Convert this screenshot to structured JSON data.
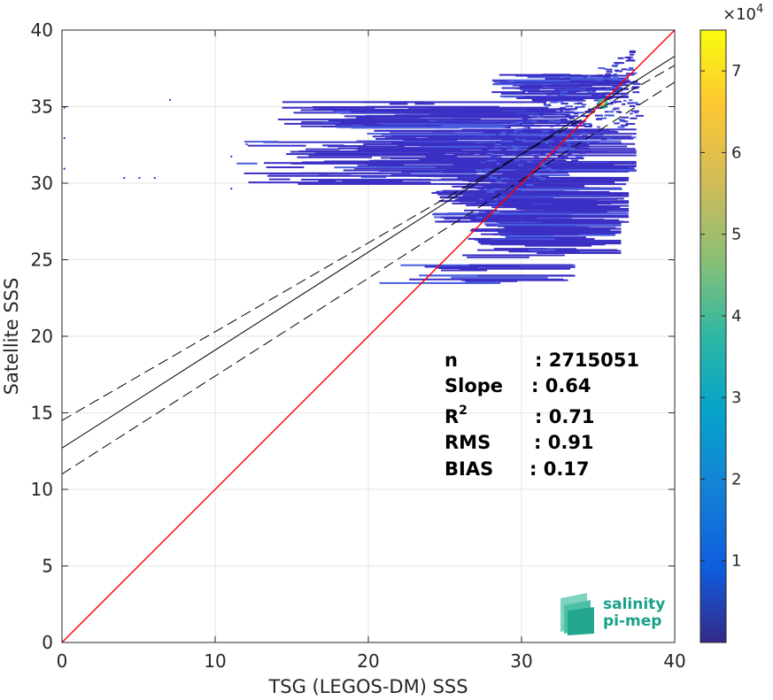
{
  "chart_data": {
    "type": "heatmap",
    "title": "",
    "xlabel": "TSG (LEGOS-DM) SSS",
    "ylabel": "Satellite SSS",
    "xlim": [
      0,
      40
    ],
    "ylim": [
      0,
      40
    ],
    "x_ticks": [
      0,
      10,
      20,
      30,
      40
    ],
    "y_ticks": [
      0,
      5,
      10,
      15,
      20,
      25,
      30,
      35,
      40
    ],
    "grid": true,
    "colormap": "parula",
    "colorbar": {
      "scale_label": "×10",
      "scale_exponent": "4",
      "ticks": [
        1,
        2,
        3,
        4,
        5,
        6,
        7
      ],
      "range": [
        0,
        7.5
      ]
    },
    "lines": {
      "identity": {
        "slope": 1,
        "intercept": 0,
        "color": "#ff0000"
      },
      "regression": {
        "slope": 0.64,
        "intercept": 12.7,
        "color": "#000000"
      },
      "regression_upper": {
        "slope": 0.58,
        "intercept": 14.5,
        "color": "#000000",
        "style": "dashed"
      },
      "regression_lower": {
        "slope": 0.64,
        "intercept": 11.0,
        "color": "#000000",
        "style": "dashed"
      }
    },
    "density_core": {
      "x": 35.3,
      "y": 35.2
    },
    "stats": {
      "n_label": "n",
      "n_value": ": 2715051",
      "slope_label": "Slope",
      "slope_value": ": 0.64",
      "r2_label": "R",
      "r2_sup": "2",
      "r2_value": ": 0.71",
      "rms_label": "RMS",
      "rms_value": ": 0.91",
      "bias_label": "BIAS",
      "bias_value": ": 0.17"
    }
  },
  "logo": {
    "line1": "salinity",
    "line2": "pi-mep"
  },
  "colors": {
    "low_density": "#3b2fc4",
    "mid_density": "#4a5ee0",
    "identity_line": "#ff0000",
    "logo": "#1aa08a"
  }
}
